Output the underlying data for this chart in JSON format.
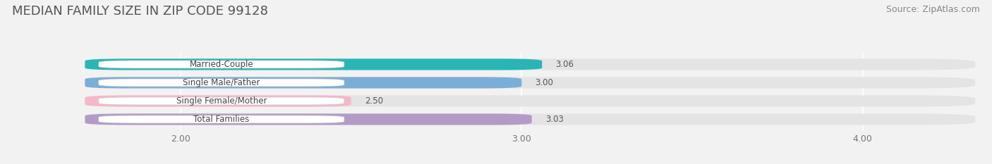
{
  "title": "MEDIAN FAMILY SIZE IN ZIP CODE 99128",
  "source": "Source: ZipAtlas.com",
  "categories": [
    "Married-Couple",
    "Single Male/Father",
    "Single Female/Mother",
    "Total Families"
  ],
  "values": [
    3.06,
    3.0,
    2.5,
    3.03
  ],
  "bar_colors": [
    "#2ab5b5",
    "#7baed6",
    "#f4b8c8",
    "#b39bc8"
  ],
  "xlim": [
    1.5,
    4.35
  ],
  "xstart": 1.72,
  "xticks": [
    2.0,
    3.0,
    4.0
  ],
  "xtick_labels": [
    "2.00",
    "3.00",
    "4.00"
  ],
  "bar_height": 0.62,
  "background_color": "#f2f2f2",
  "bar_bg_color": "#e4e4e4",
  "value_labels": [
    "3.06",
    "3.00",
    "2.50",
    "3.03"
  ],
  "title_fontsize": 13,
  "source_fontsize": 9,
  "label_fontsize": 8.5,
  "value_fontsize": 8.5,
  "tick_fontsize": 9,
  "grid_color": "#cccccc",
  "text_color": "#555555"
}
